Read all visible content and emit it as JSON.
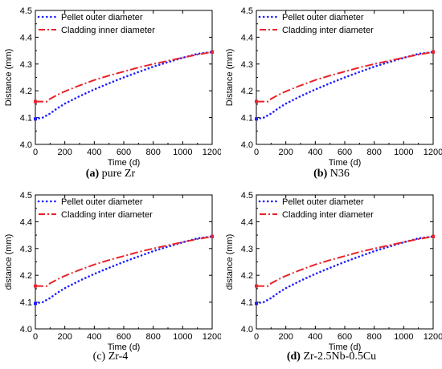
{
  "chart_data": [
    {
      "type": "line",
      "caption_letter": "(a)",
      "caption_text": " pure Zr",
      "xlabel": "Time (d)",
      "ylabel": "Distance (mm)",
      "xlim": [
        0,
        1200
      ],
      "ylim": [
        4.0,
        4.5
      ],
      "xticks": [
        "0",
        "200",
        "400",
        "600",
        "800",
        "1000",
        "1200"
      ],
      "yticks": [
        "4.0",
        "4.1",
        "4.2",
        "4.3",
        "4.4",
        "4.5"
      ],
      "legend_placement": "top-left",
      "grid": false,
      "series": [
        {
          "name": "Pellet outer diameter",
          "color": "#1f1fff",
          "style": "dotted",
          "x": [
            0,
            50,
            100,
            150,
            200,
            300,
            400,
            500,
            600,
            700,
            800,
            900,
            1000,
            1100,
            1200
          ],
          "y": [
            4.095,
            4.1,
            4.115,
            4.135,
            4.152,
            4.18,
            4.205,
            4.228,
            4.25,
            4.27,
            4.29,
            4.307,
            4.323,
            4.338,
            4.345
          ]
        },
        {
          "name": "Cladding inner diameter",
          "color": "#e8232a",
          "style": "dashdot",
          "x": [
            0,
            80,
            100,
            150,
            200,
            300,
            400,
            500,
            600,
            700,
            800,
            900,
            1000,
            1100,
            1200
          ],
          "y": [
            4.16,
            4.16,
            4.17,
            4.185,
            4.198,
            4.22,
            4.24,
            4.257,
            4.272,
            4.287,
            4.3,
            4.312,
            4.324,
            4.335,
            4.345
          ]
        }
      ]
    },
    {
      "type": "line",
      "caption_letter": "(b)",
      "caption_text": " N36",
      "xlabel": "Time (d)",
      "ylabel": "Distance (mm)",
      "xlim": [
        0,
        1200
      ],
      "ylim": [
        4.0,
        4.5
      ],
      "xticks": [
        "0",
        "200",
        "400",
        "600",
        "800",
        "1000",
        "1200"
      ],
      "yticks": [
        "4.0",
        "4.1",
        "4.2",
        "4.3",
        "4.4",
        "4.5"
      ],
      "legend_placement": "top-left",
      "grid": false,
      "series": [
        {
          "name": "Pellet outer diameter",
          "color": "#1f1fff",
          "style": "dotted",
          "x": [
            0,
            50,
            100,
            150,
            200,
            300,
            400,
            500,
            600,
            700,
            800,
            900,
            1000,
            1100,
            1200
          ],
          "y": [
            4.095,
            4.1,
            4.115,
            4.135,
            4.152,
            4.18,
            4.205,
            4.228,
            4.25,
            4.27,
            4.29,
            4.307,
            4.323,
            4.338,
            4.345
          ]
        },
        {
          "name": "Cladding inter diameter",
          "color": "#e8232a",
          "style": "dashdot",
          "x": [
            0,
            80,
            100,
            150,
            200,
            300,
            400,
            500,
            600,
            700,
            800,
            900,
            1000,
            1100,
            1200
          ],
          "y": [
            4.16,
            4.16,
            4.17,
            4.185,
            4.198,
            4.22,
            4.24,
            4.257,
            4.272,
            4.287,
            4.3,
            4.312,
            4.324,
            4.335,
            4.345
          ]
        }
      ]
    },
    {
      "type": "line",
      "caption_letter": "",
      "caption_text": "(c) Zr-4",
      "xlabel": "Time (d)",
      "ylabel": "distance (mm)",
      "xlim": [
        0,
        1200
      ],
      "ylim": [
        4.0,
        4.5
      ],
      "xticks": [
        "0",
        "200",
        "400",
        "600",
        "800",
        "1000",
        "1200"
      ],
      "yticks": [
        "4.0",
        "4.1",
        "4.2",
        "4.3",
        "4.4",
        "4.5"
      ],
      "legend_placement": "top-left",
      "grid": false,
      "series": [
        {
          "name": "Pellet outer diameter",
          "color": "#1f1fff",
          "style": "dotted",
          "x": [
            0,
            50,
            100,
            150,
            200,
            300,
            400,
            500,
            600,
            700,
            800,
            900,
            1000,
            1100,
            1200
          ],
          "y": [
            4.095,
            4.1,
            4.115,
            4.135,
            4.152,
            4.18,
            4.205,
            4.228,
            4.25,
            4.27,
            4.29,
            4.307,
            4.323,
            4.338,
            4.345
          ]
        },
        {
          "name": "Cladding inter diameter",
          "color": "#e8232a",
          "style": "dashdot",
          "x": [
            0,
            80,
            100,
            150,
            200,
            300,
            400,
            500,
            600,
            700,
            800,
            900,
            1000,
            1100,
            1200
          ],
          "y": [
            4.16,
            4.16,
            4.17,
            4.185,
            4.198,
            4.22,
            4.24,
            4.257,
            4.272,
            4.287,
            4.3,
            4.312,
            4.324,
            4.335,
            4.345
          ]
        }
      ]
    },
    {
      "type": "line",
      "caption_letter": "(d)",
      "caption_text": " Zr-2.5Nb-0.5Cu",
      "xlabel": "Time (d)",
      "ylabel": "distance (mm)",
      "xlim": [
        0,
        1200
      ],
      "ylim": [
        4.0,
        4.5
      ],
      "xticks": [
        "0",
        "200",
        "400",
        "600",
        "800",
        "1000",
        "1200"
      ],
      "yticks": [
        "4.0",
        "4.1",
        "4.2",
        "4.3",
        "4.4",
        "4.5"
      ],
      "legend_placement": "top-left",
      "grid": false,
      "series": [
        {
          "name": "Pellet outer diameter",
          "color": "#1f1fff",
          "style": "dotted",
          "x": [
            0,
            50,
            100,
            150,
            200,
            300,
            400,
            500,
            600,
            700,
            800,
            900,
            1000,
            1100,
            1200
          ],
          "y": [
            4.095,
            4.1,
            4.115,
            4.135,
            4.152,
            4.18,
            4.205,
            4.228,
            4.25,
            4.27,
            4.29,
            4.307,
            4.323,
            4.338,
            4.345
          ]
        },
        {
          "name": "Cladding inter diameter",
          "color": "#e8232a",
          "style": "dashdot",
          "x": [
            0,
            80,
            100,
            150,
            200,
            300,
            400,
            500,
            600,
            700,
            800,
            900,
            1000,
            1100,
            1200
          ],
          "y": [
            4.16,
            4.16,
            4.17,
            4.185,
            4.198,
            4.22,
            4.24,
            4.257,
            4.272,
            4.287,
            4.3,
            4.312,
            4.324,
            4.335,
            4.345
          ]
        }
      ]
    }
  ]
}
